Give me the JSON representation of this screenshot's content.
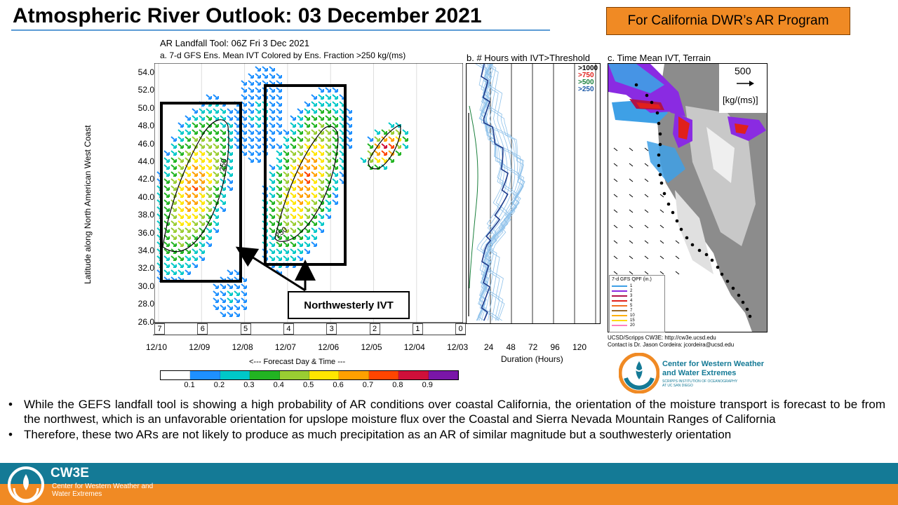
{
  "slide": {
    "title": "Atmospheric River Outlook: 03 December 2021",
    "badge": "For California DWR’s AR Program"
  },
  "panel_a": {
    "title1": "AR Landfall Tool: 06Z Fri 3 Dec 2021",
    "title2": "a. 7-d GFS Ens. Mean IVT Colored by Ens. Fraction >250 kg/(ms)",
    "ylabel": "Latitude along North American West Coast",
    "xlabel": "<--- Forecast Day & Time ---",
    "lat_ticks": [
      "54.0",
      "52.0",
      "50.0",
      "48.0",
      "46.0",
      "44.0",
      "42.0",
      "40.0",
      "38.0",
      "36.0",
      "34.0",
      "32.0",
      "30.0",
      "28.0",
      "26.0"
    ],
    "day_boxes": [
      "7",
      "6",
      "5",
      "4",
      "3",
      "2",
      "1",
      "0"
    ],
    "dates": [
      "12/10",
      "12/09",
      "12/08",
      "12/07",
      "12/06",
      "12/05",
      "12/04",
      "12/03"
    ],
    "contour_labels": [
      "250",
      "250"
    ],
    "callout": "Northwesterly IVT"
  },
  "colorbar": {
    "ticks": [
      "0.1",
      "0.2",
      "0.3",
      "0.4",
      "0.5",
      "0.6",
      "0.7",
      "0.8",
      "0.9"
    ],
    "colors": [
      "#ffffff",
      "#1e90ff",
      "#00c8c8",
      "#22b422",
      "#9acd32",
      "#ffe600",
      "#ffa000",
      "#ff4500",
      "#d0103a",
      "#7a16a8"
    ]
  },
  "panel_b": {
    "title": "b. # Hours with IVT>Threshold",
    "legend": [
      {
        "label": ">1000",
        "color": "#000000"
      },
      {
        "label": ">750",
        "color": "#e0201c"
      },
      {
        "label": ">500",
        "color": "#1a7f3c"
      },
      {
        "label": ">250",
        "color": "#1e5aa8"
      }
    ],
    "x_ticks": [
      "24",
      "48",
      "72",
      "96",
      "120"
    ],
    "xlabel": "Duration (Hours)"
  },
  "panel_c": {
    "title": "c. Time Mean IVT, Terrain",
    "ref_value": "500",
    "ref_units": "[kg/(ms)]",
    "qpf_title": "7-d GFS QPF (in.)",
    "qpf_legend": [
      {
        "label": "1",
        "color": "#3ea0e6"
      },
      {
        "label": "2",
        "color": "#8a2be2"
      },
      {
        "label": "3",
        "color": "#b0124a"
      },
      {
        "label": "4",
        "color": "#e0201c"
      },
      {
        "label": "5",
        "color": "#f07020"
      },
      {
        "label": "7",
        "color": "#9a6a2a"
      },
      {
        "label": "10",
        "color": "#ffb000"
      },
      {
        "label": "15",
        "color": "#ffd800"
      },
      {
        "label": "20",
        "color": "#ff80c0"
      }
    ],
    "credit1": "UCSD/Scripps CW3E: http://cw3e.ucsd.edu",
    "credit2": "Contact is Dr. Jason Cordeira: jcordeira@ucsd.edu"
  },
  "logo": {
    "line1": "Center for Western Weather",
    "line2": "and Water Extremes",
    "line3": "SCRIPPS INSTITUTION OF OCEANOGRAPHY",
    "line4": "AT UC SAN DIEGO"
  },
  "bullets": [
    "While the GEFS landfall tool is showing a high probability of AR conditions over coastal California, the orientation of the moisture transport is forecast to be from the northwest, which is an unfavorable orientation for upslope moisture flux over the Coastal and Sierra Nevada Mountain Ranges of California",
    "Therefore, these two ARs are not likely to produce as much precipitation as an AR of similar magnitude but a southwesterly orientation"
  ],
  "footer": {
    "short": "CW3E",
    "full": "Center for Western Weather and Water Extremes"
  }
}
